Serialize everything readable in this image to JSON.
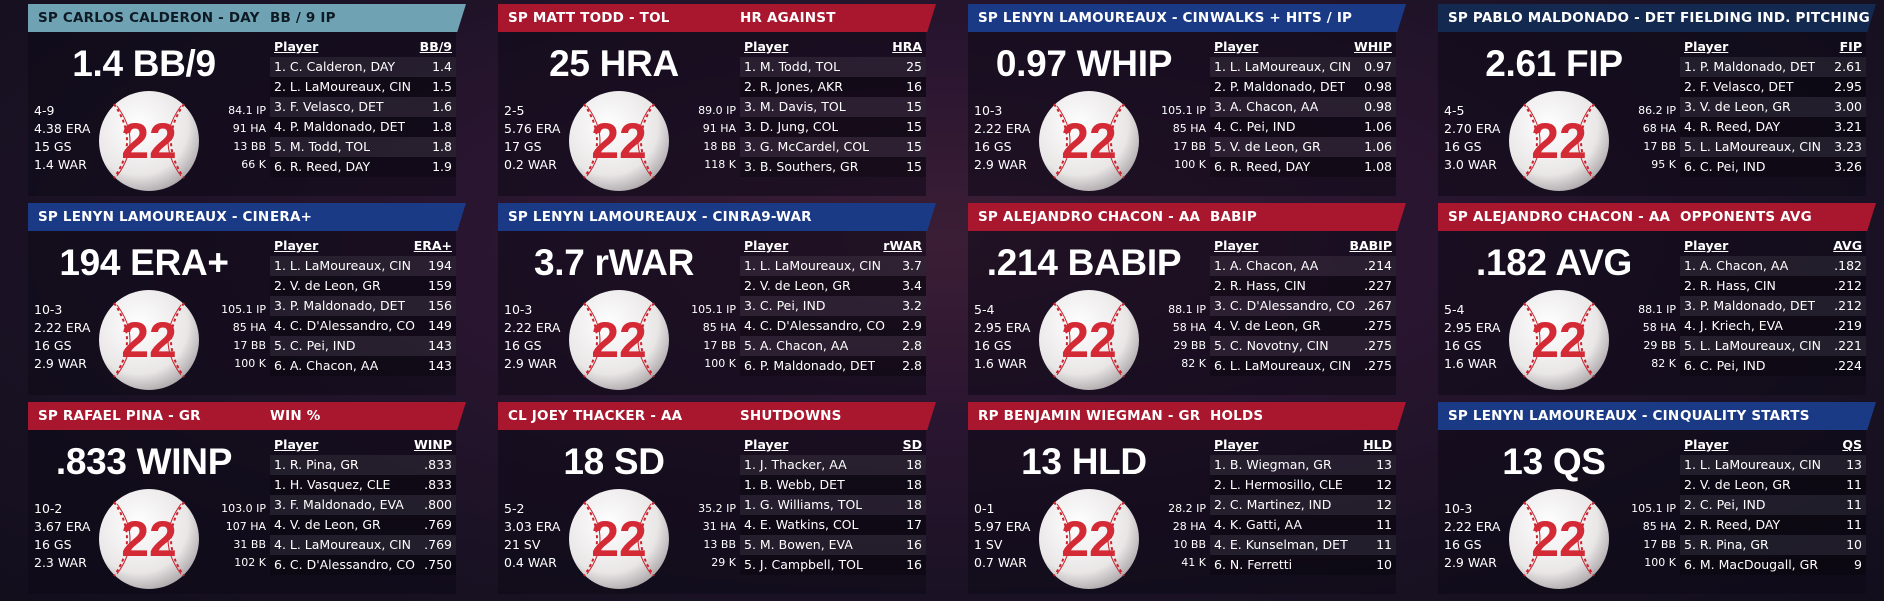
{
  "cards": [
    {
      "header_color": "teal",
      "player": "SP CARLOS CALDERON - DAY",
      "stat_title": "BB / 9 IP",
      "big_value": "1.4 BB/9",
      "left": [
        "4-9",
        "4.38 ERA",
        "15 GS",
        "1.4 WAR"
      ],
      "right": [
        "84.1 IP",
        "91 HA",
        "13 BB",
        "66 K"
      ],
      "number": "22",
      "col_player": "Player",
      "col_stat": "BB/9",
      "rows": [
        {
          "name": "1. C. Calderon, DAY",
          "value": "1.4"
        },
        {
          "name": "2. L. LaMoureaux, CIN",
          "value": "1.5"
        },
        {
          "name": "3. F. Velasco, DET",
          "value": "1.6"
        },
        {
          "name": "4. P. Maldonado, DET",
          "value": "1.8"
        },
        {
          "name": "5. M. Todd, TOL",
          "value": "1.8"
        },
        {
          "name": "6. R. Reed, DAY",
          "value": "1.9"
        }
      ]
    },
    {
      "header_color": "red",
      "player": "SP MATT TODD - TOL",
      "stat_title": "HR AGAINST",
      "big_value": "25 HRA",
      "left": [
        "2-5",
        "5.76 ERA",
        "17 GS",
        "0.2 WAR"
      ],
      "right": [
        "89.0 IP",
        "91 HA",
        "18 BB",
        "118 K"
      ],
      "number": "22",
      "col_player": "Player",
      "col_stat": "HRA",
      "rows": [
        {
          "name": "1. M. Todd, TOL",
          "value": "25"
        },
        {
          "name": "2. R. Jones, AKR",
          "value": "16"
        },
        {
          "name": "3. M. Davis, TOL",
          "value": "15"
        },
        {
          "name": "3. D. Jung, COL",
          "value": "15"
        },
        {
          "name": "3. G. McCardel, COL",
          "value": "15"
        },
        {
          "name": "3. B. Southers, GR",
          "value": "15"
        }
      ]
    },
    {
      "header_color": "blue",
      "player": "SP LENYN LAMOUREAUX - CIN",
      "stat_title": "WALKS + HITS / IP",
      "big_value": "0.97 WHIP",
      "left": [
        "10-3",
        "2.22 ERA",
        "16 GS",
        "2.9 WAR"
      ],
      "right": [
        "105.1 IP",
        "85 HA",
        "17 BB",
        "100 K"
      ],
      "number": "22",
      "col_player": "Player",
      "col_stat": "WHIP",
      "rows": [
        {
          "name": "1. L. LaMoureaux, CIN",
          "value": "0.97"
        },
        {
          "name": "2. P. Maldonado, DET",
          "value": "0.98"
        },
        {
          "name": "3. A. Chacon, AA",
          "value": "0.98"
        },
        {
          "name": "4. C. Pei, IND",
          "value": "1.06"
        },
        {
          "name": "5. V. de Leon, GR",
          "value": "1.06"
        },
        {
          "name": "6. R. Reed, DAY",
          "value": "1.08"
        }
      ]
    },
    {
      "header_color": "navy",
      "player": "SP PABLO MALDONADO - DET",
      "stat_title": "FIELDING IND. PITCHING",
      "big_value": "2.61 FIP",
      "left": [
        "4-5",
        "2.70 ERA",
        "16 GS",
        "3.0 WAR"
      ],
      "right": [
        "86.2 IP",
        "68 HA",
        "17 BB",
        "95 K"
      ],
      "number": "22",
      "col_player": "Player",
      "col_stat": "FIP",
      "rows": [
        {
          "name": "1. P. Maldonado, DET",
          "value": "2.61"
        },
        {
          "name": "2. F. Velasco, DET",
          "value": "2.95"
        },
        {
          "name": "3. V. de Leon, GR",
          "value": "3.00"
        },
        {
          "name": "4. R. Reed, DAY",
          "value": "3.21"
        },
        {
          "name": "5. L. LaMoureaux, CIN",
          "value": "3.23"
        },
        {
          "name": "6. C. Pei, IND",
          "value": "3.26"
        }
      ]
    },
    {
      "header_color": "blue",
      "player": "SP LENYN LAMOUREAUX - CIN",
      "stat_title": "ERA+",
      "big_value": "194 ERA+",
      "left": [
        "10-3",
        "2.22 ERA",
        "16 GS",
        "2.9 WAR"
      ],
      "right": [
        "105.1 IP",
        "85 HA",
        "17 BB",
        "100 K"
      ],
      "number": "22",
      "col_player": "Player",
      "col_stat": "ERA+",
      "rows": [
        {
          "name": "1. L. LaMoureaux, CIN",
          "value": "194"
        },
        {
          "name": "2. V. de Leon, GR",
          "value": "159"
        },
        {
          "name": "3. P. Maldonado, DET",
          "value": "156"
        },
        {
          "name": "4. C. D'Alessandro, CO",
          "value": "149"
        },
        {
          "name": "5. C. Pei, IND",
          "value": "143"
        },
        {
          "name": "6. A. Chacon, AA",
          "value": "143"
        }
      ]
    },
    {
      "header_color": "blue",
      "player": "SP LENYN LAMOUREAUX - CIN",
      "stat_title": "RA9-WAR",
      "big_value": "3.7 rWAR",
      "left": [
        "10-3",
        "2.22 ERA",
        "16 GS",
        "2.9 WAR"
      ],
      "right": [
        "105.1 IP",
        "85 HA",
        "17 BB",
        "100 K"
      ],
      "number": "22",
      "col_player": "Player",
      "col_stat": "rWAR",
      "rows": [
        {
          "name": "1. L. LaMoureaux, CIN",
          "value": "3.7"
        },
        {
          "name": "2. V. de Leon, GR",
          "value": "3.4"
        },
        {
          "name": "3. C. Pei, IND",
          "value": "3.2"
        },
        {
          "name": "4. C. D'Alessandro, CO",
          "value": "2.9"
        },
        {
          "name": "5. A. Chacon, AA",
          "value": "2.8"
        },
        {
          "name": "6. P. Maldonado, DET",
          "value": "2.8"
        }
      ]
    },
    {
      "header_color": "red",
      "player": "SP ALEJANDRO CHACON - AA",
      "stat_title": "BABIP",
      "big_value": ".214 BABIP",
      "left": [
        "5-4",
        "2.95 ERA",
        "16 GS",
        "1.6 WAR"
      ],
      "right": [
        "88.1 IP",
        "58 HA",
        "29 BB",
        "82 K"
      ],
      "number": "22",
      "col_player": "Player",
      "col_stat": "BABIP",
      "rows": [
        {
          "name": "1. A. Chacon, AA",
          "value": ".214"
        },
        {
          "name": "2. R. Hass, CIN",
          "value": ".227"
        },
        {
          "name": "3. C. D'Alessandro, CO",
          "value": ".267"
        },
        {
          "name": "4. V. de Leon, GR",
          "value": ".275"
        },
        {
          "name": "5. C. Novotny, CIN",
          "value": ".275"
        },
        {
          "name": "6. L. LaMoureaux, CIN",
          "value": ".275"
        }
      ]
    },
    {
      "header_color": "red",
      "player": "SP ALEJANDRO CHACON - AA",
      "stat_title": "OPPONENTS AVG",
      "big_value": ".182 AVG",
      "left": [
        "5-4",
        "2.95 ERA",
        "16 GS",
        "1.6 WAR"
      ],
      "right": [
        "88.1 IP",
        "58 HA",
        "29 BB",
        "82 K"
      ],
      "number": "22",
      "col_player": "Player",
      "col_stat": "AVG",
      "rows": [
        {
          "name": "1. A. Chacon, AA",
          "value": ".182"
        },
        {
          "name": "2. R. Hass, CIN",
          "value": ".212"
        },
        {
          "name": "3. P. Maldonado, DET",
          "value": ".212"
        },
        {
          "name": "4. J. Kriech, EVA",
          "value": ".219"
        },
        {
          "name": "5. L. LaMoureaux, CIN",
          "value": ".221"
        },
        {
          "name": "6. C. Pei, IND",
          "value": ".224"
        }
      ]
    },
    {
      "header_color": "red",
      "player": "SP RAFAEL PINA - GR",
      "stat_title": "WIN %",
      "big_value": ".833 WINP",
      "left": [
        "10-2",
        "3.67 ERA",
        "16 GS",
        "2.3 WAR"
      ],
      "right": [
        "103.0 IP",
        "107 HA",
        "31 BB",
        "102 K"
      ],
      "number": "22",
      "col_player": "Player",
      "col_stat": "WINP",
      "rows": [
        {
          "name": "1. R. Pina, GR",
          "value": ".833"
        },
        {
          "name": "1. H. Vasquez, CLE",
          "value": ".833"
        },
        {
          "name": "3. F. Maldonado, EVA",
          "value": ".800"
        },
        {
          "name": "4. V. de Leon, GR",
          "value": ".769"
        },
        {
          "name": "4. L. LaMoureaux, CIN",
          "value": ".769"
        },
        {
          "name": "6. C. D'Alessandro, CO",
          "value": ".750"
        }
      ]
    },
    {
      "header_color": "red",
      "player": "CL JOEY THACKER - AA",
      "stat_title": "SHUTDOWNS",
      "big_value": "18 SD",
      "left": [
        "5-2",
        "3.03 ERA",
        "21 SV",
        "0.4 WAR"
      ],
      "right": [
        "35.2 IP",
        "31 HA",
        "13 BB",
        "29 K"
      ],
      "number": "22",
      "col_player": "Player",
      "col_stat": "SD",
      "rows": [
        {
          "name": "1. J. Thacker, AA",
          "value": "18"
        },
        {
          "name": "1. B. Webb, DET",
          "value": "18"
        },
        {
          "name": "1. G. Williams, TOL",
          "value": "18"
        },
        {
          "name": "4. E. Watkins, COL",
          "value": "17"
        },
        {
          "name": "5. M. Bowen, EVA",
          "value": "16"
        },
        {
          "name": "5. J. Campbell, TOL",
          "value": "16"
        }
      ]
    },
    {
      "header_color": "red",
      "player": "RP BENJAMIN WIEGMAN - GR",
      "stat_title": "HOLDS",
      "big_value": "13 HLD",
      "left": [
        "0-1",
        "5.97 ERA",
        "1 SV",
        "0.7 WAR"
      ],
      "right": [
        "28.2 IP",
        "28 HA",
        "10 BB",
        "41 K"
      ],
      "number": "22",
      "col_player": "Player",
      "col_stat": "HLD",
      "rows": [
        {
          "name": "1. B. Wiegman, GR",
          "value": "13"
        },
        {
          "name": "2. L. Hermosillo, CLE",
          "value": "12"
        },
        {
          "name": "2. C. Martinez, IND",
          "value": "12"
        },
        {
          "name": "4. K. Gatti, AA",
          "value": "11"
        },
        {
          "name": "4. E. Kunselman, DET",
          "value": "11"
        },
        {
          "name": "6. N. Ferretti",
          "value": "10"
        }
      ]
    },
    {
      "header_color": "blue",
      "player": "SP LENYN LAMOUREAUX - CIN",
      "stat_title": "QUALITY STARTS",
      "big_value": "13 QS",
      "left": [
        "10-3",
        "2.22 ERA",
        "16 GS",
        "2.9 WAR"
      ],
      "right": [
        "105.1 IP",
        "85 HA",
        "17 BB",
        "100 K"
      ],
      "number": "22",
      "col_player": "Player",
      "col_stat": "QS",
      "rows": [
        {
          "name": "1. L. LaMoureaux, CIN",
          "value": "13"
        },
        {
          "name": "2. V. de Leon, GR",
          "value": "11"
        },
        {
          "name": "2. C. Pei, IND",
          "value": "11"
        },
        {
          "name": "2. R. Reed, DAY",
          "value": "11"
        },
        {
          "name": "5. R. Pina, GR",
          "value": "10"
        },
        {
          "name": "6. M. MacDougall, GR",
          "value": "9"
        }
      ]
    }
  ]
}
